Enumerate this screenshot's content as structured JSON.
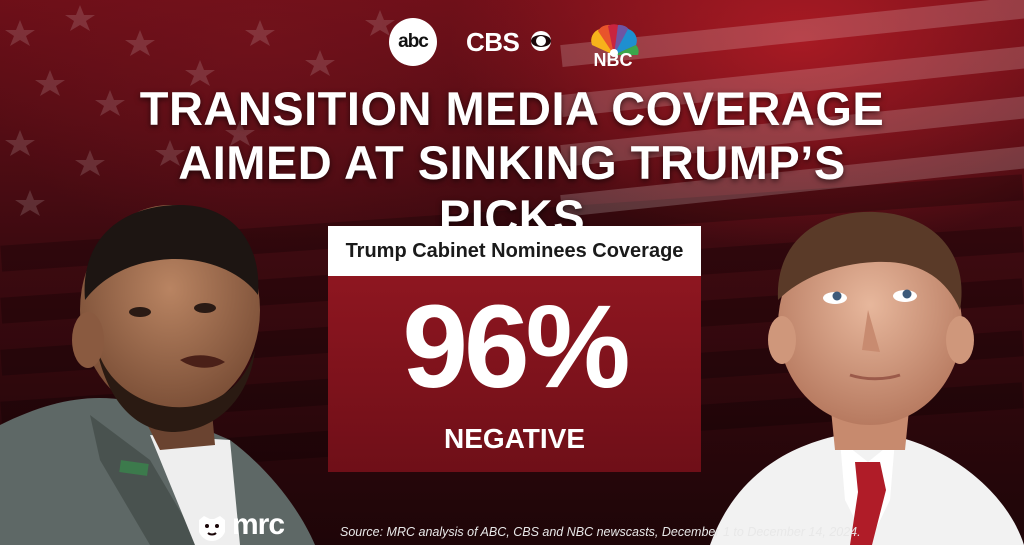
{
  "brand_logos": [
    {
      "name": "abc-logo",
      "text": "abc"
    },
    {
      "name": "cbs-logo",
      "text": "CBS"
    },
    {
      "name": "nbc-logo",
      "text": "NBC"
    }
  ],
  "headline": {
    "line1": "TRANSITION MEDIA COVERAGE",
    "line2": "AIMED AT SINKING TRUMP’S PICKS"
  },
  "stat": {
    "label": "Trump Cabinet Nominees Coverage",
    "value": "96%",
    "sublabel": "NEGATIVE"
  },
  "footer": {
    "logo_text": "mrc",
    "source": "Source: MRC analysis of ABC, CBS and NBC  newscasts, December 1 to December 14, 2024."
  },
  "colors": {
    "background_red": "#6d0f18",
    "stat_box_red": "#8e1620",
    "label_bar": "#ffffff",
    "text": "#ffffff"
  },
  "images": [
    "photo-left-man-speaking",
    "photo-right-man-looking-up"
  ]
}
